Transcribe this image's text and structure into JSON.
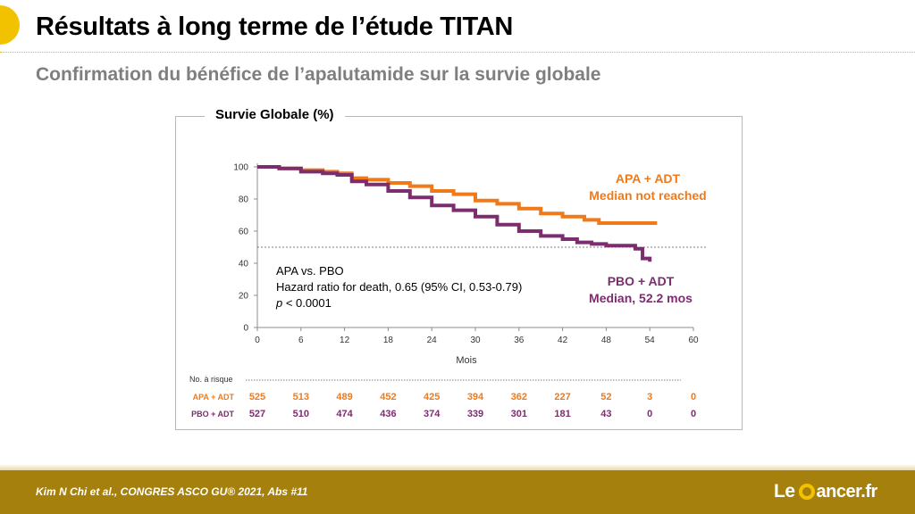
{
  "header": {
    "title": "Résultats à long terme de l’étude TITAN",
    "subtitle": "Confirmation du bénéfice de l’apalutamide sur la survie globale"
  },
  "footer": {
    "citation": "Kim N Chi et al., CONGRES ASCO GU® 2021, Abs #11",
    "logo_left": "Le",
    "logo_right": "ancer.fr"
  },
  "chart_data": {
    "type": "line",
    "title": "Survie Globale (%)",
    "xlabel": "Mois",
    "ylabel": "",
    "xlim": [
      0,
      60
    ],
    "ylim": [
      0,
      100
    ],
    "x_ticks": [
      0,
      6,
      12,
      18,
      24,
      30,
      36,
      42,
      48,
      54,
      60
    ],
    "y_ticks": [
      0,
      20,
      40,
      60,
      80,
      100
    ],
    "median_reference_line": 50,
    "grid": false,
    "series": [
      {
        "name": "APA + ADT",
        "label_line1": "APA + ADT",
        "label_line2": "Median not reached",
        "color": "#f07a1a",
        "x": [
          0,
          3,
          6,
          9,
          11,
          13,
          15,
          18,
          21,
          24,
          27,
          30,
          33,
          36,
          39,
          42,
          45,
          47,
          50,
          55
        ],
        "y": [
          100,
          99,
          98,
          97,
          96,
          93,
          92,
          90,
          88,
          85,
          83,
          79,
          77,
          74,
          71,
          69,
          67,
          65,
          65,
          65
        ]
      },
      {
        "name": "PBO + ADT",
        "label_line1": "PBO + ADT",
        "label_line2": "Median, 52.2 mos",
        "color": "#7b2d6e",
        "x": [
          0,
          3,
          6,
          9,
          11,
          13,
          15,
          18,
          21,
          24,
          27,
          30,
          33,
          36,
          39,
          42,
          44,
          46,
          48,
          50,
          52,
          53,
          54
        ],
        "y": [
          100,
          99,
          97,
          96,
          95,
          91,
          89,
          85,
          81,
          76,
          73,
          69,
          64,
          60,
          57,
          55,
          53,
          52,
          51,
          51,
          49,
          43,
          41
        ]
      }
    ],
    "annotation": {
      "line1": "APA vs. PBO",
      "line2": "Hazard ratio for death, 0.65 (95% CI, 0.53-0.79)",
      "line3_italic": "p",
      "line3_rest": " < 0.0001"
    },
    "risk_table": {
      "header": "No. à risque",
      "rows": [
        {
          "label": "APA + ADT",
          "color": "#f07a1a",
          "values": [
            525,
            513,
            489,
            452,
            425,
            394,
            362,
            227,
            52,
            3,
            0
          ]
        },
        {
          "label": "PBO + ADT",
          "color": "#7b2d6e",
          "values": [
            527,
            510,
            474,
            436,
            374,
            339,
            301,
            181,
            43,
            0,
            0
          ]
        }
      ]
    }
  }
}
